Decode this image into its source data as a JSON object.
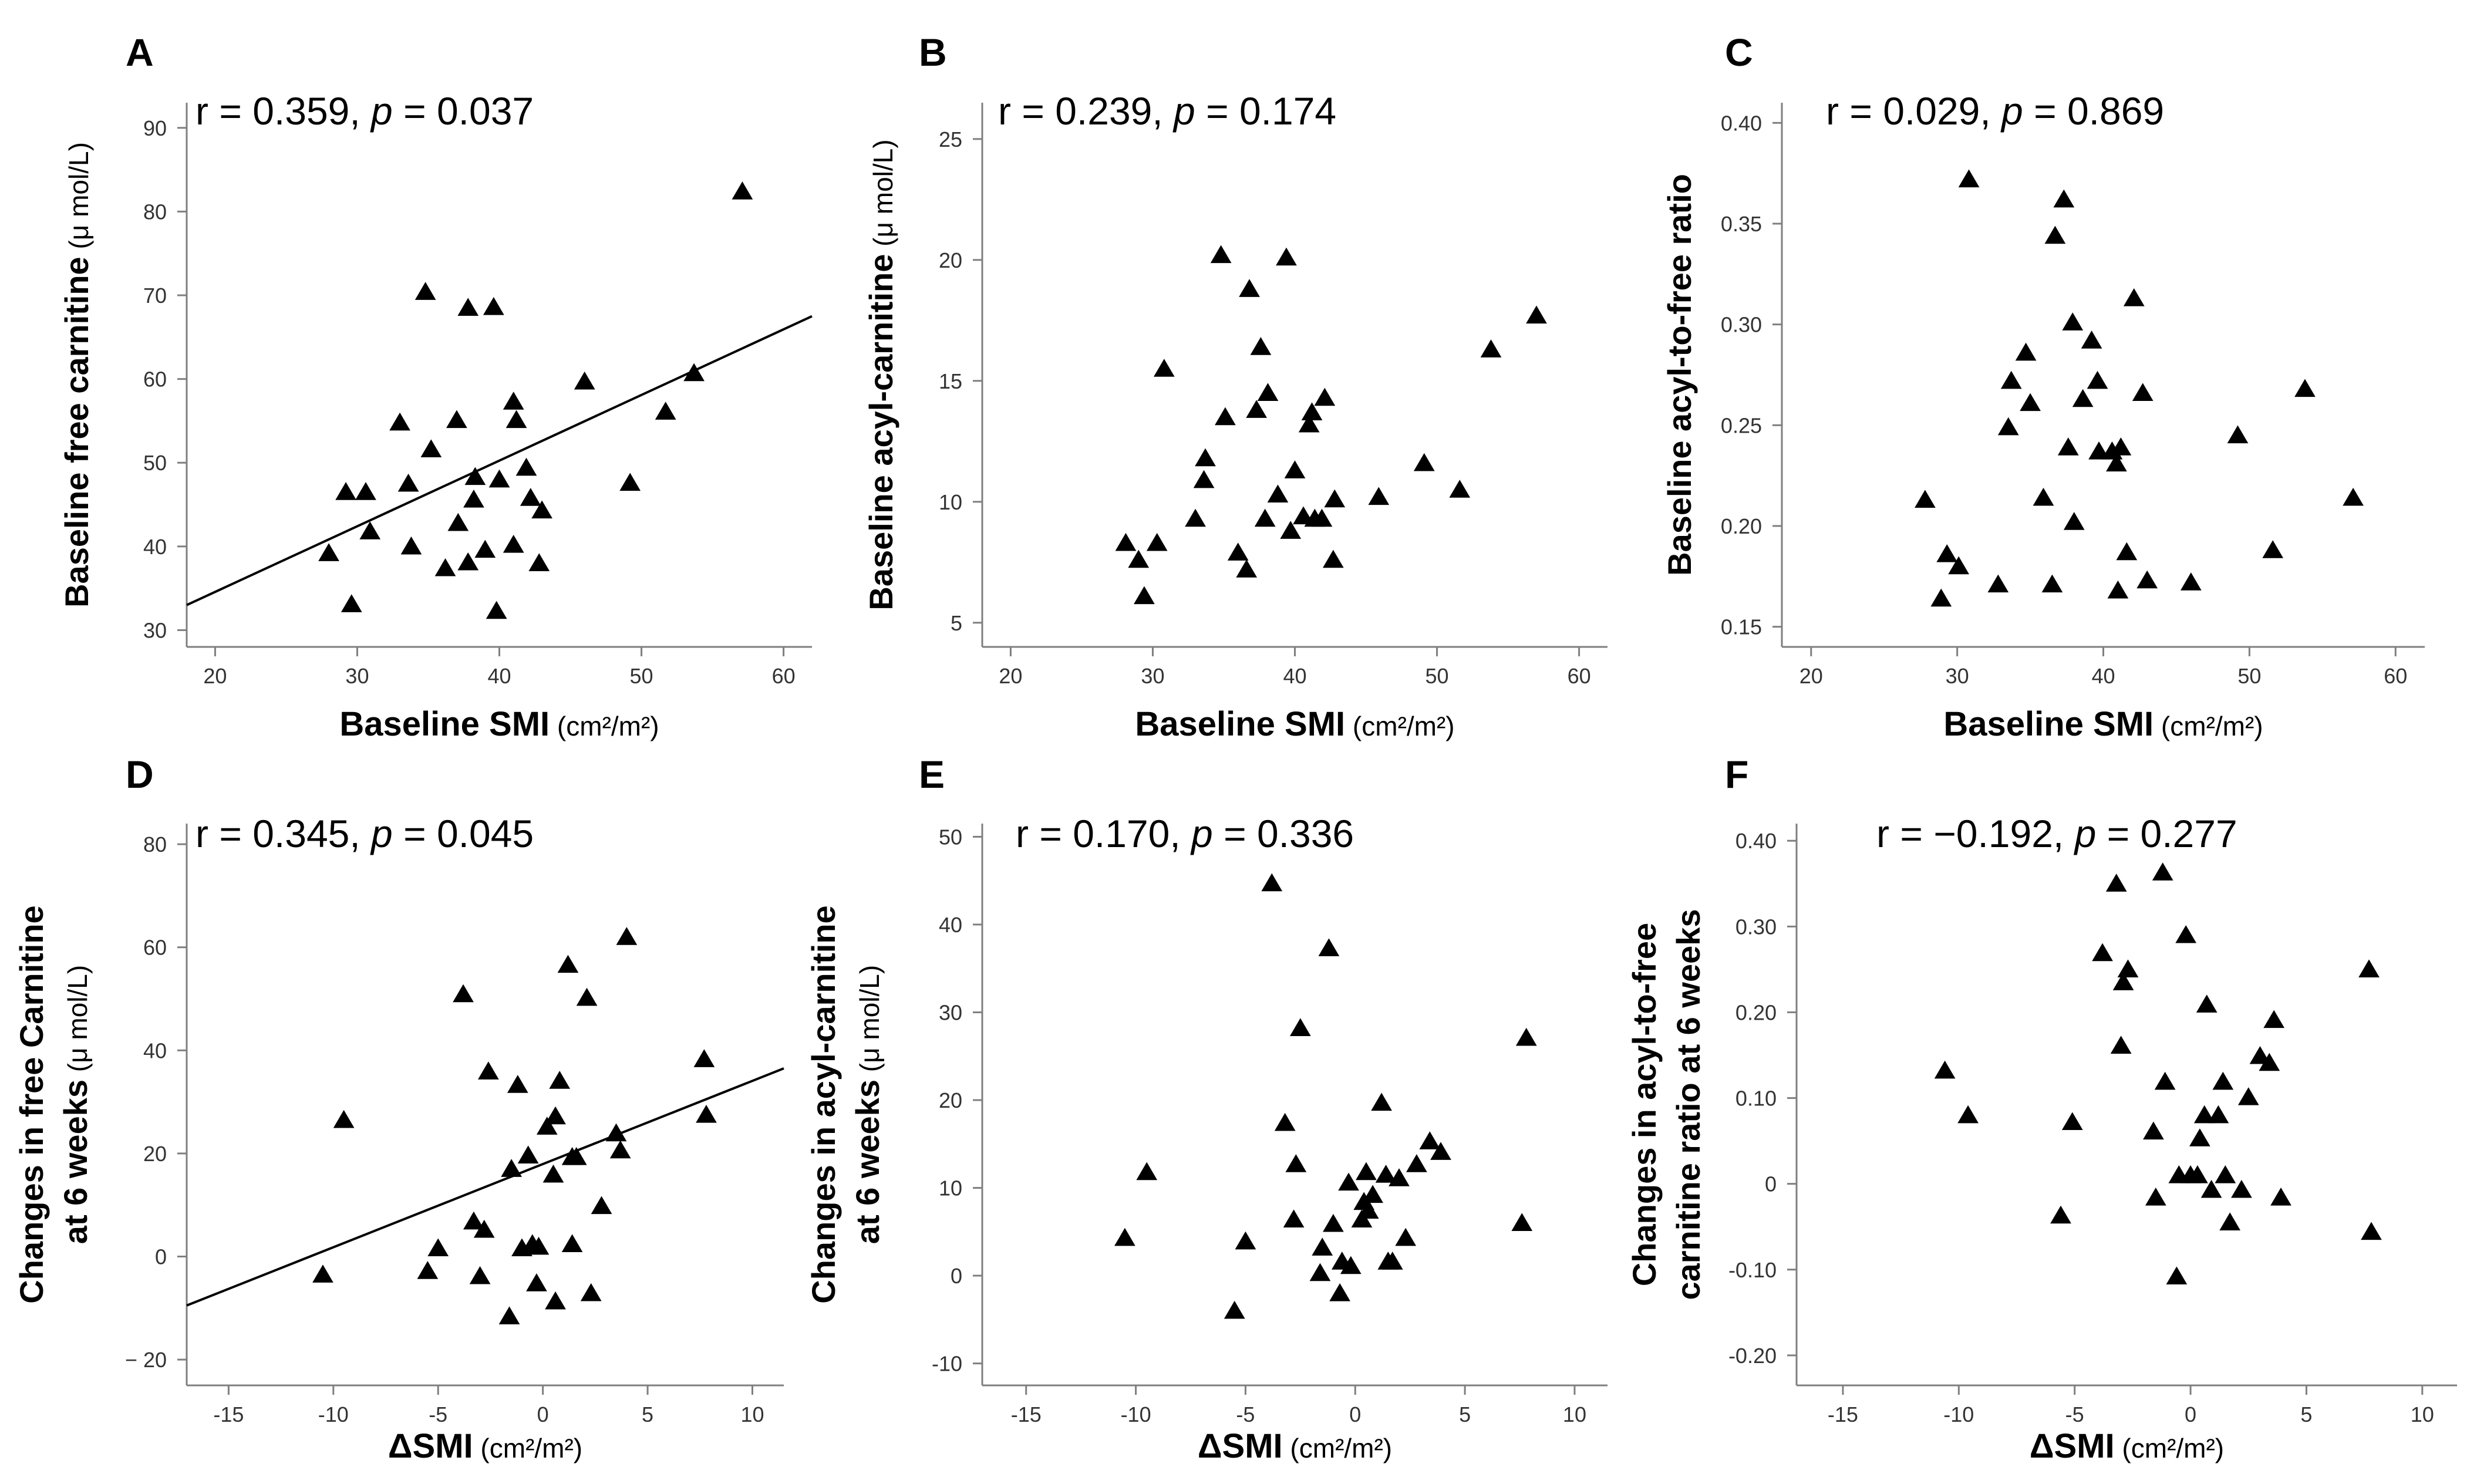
{
  "figure": {
    "background": "#ffffff",
    "marker_color": "#000000",
    "axis_color": "#7f7f7f",
    "fit_line_color": "#000000"
  },
  "chart_data": [
    {
      "type": "scatter",
      "panel": "A",
      "annotation": {
        "r_text": "r = 0.359, ",
        "p_label": "p",
        "p_text": " = 0.037"
      },
      "xlabel": "Baseline SMI",
      "xlabel_unit": "(cm²/m²)",
      "ylabel_lines": [
        {
          "main": "Baseline free carnitine",
          "unit": "(μ mol/L)"
        }
      ],
      "xlim": [
        18,
        62
      ],
      "ylim": [
        28,
        93
      ],
      "xticks": [
        20,
        30,
        40,
        50,
        60
      ],
      "yticks": [
        30,
        40,
        50,
        60,
        70,
        80,
        90
      ],
      "fit_line": {
        "x": [
          18,
          62
        ],
        "y": [
          33,
          67.5
        ]
      },
      "points": [
        {
          "x": 28,
          "y": 39.2
        },
        {
          "x": 29.2,
          "y": 46.5
        },
        {
          "x": 29.6,
          "y": 33.1
        },
        {
          "x": 30.6,
          "y": 46.5
        },
        {
          "x": 30.9,
          "y": 41.8
        },
        {
          "x": 33.0,
          "y": 54.8
        },
        {
          "x": 33.6,
          "y": 47.5
        },
        {
          "x": 33.8,
          "y": 40.0
        },
        {
          "x": 34.8,
          "y": 70.4
        },
        {
          "x": 35.2,
          "y": 51.6
        },
        {
          "x": 36.2,
          "y": 37.4
        },
        {
          "x": 37.0,
          "y": 55.1
        },
        {
          "x": 37.1,
          "y": 42.8
        },
        {
          "x": 37.8,
          "y": 68.5
        },
        {
          "x": 37.8,
          "y": 38.1
        },
        {
          "x": 38.2,
          "y": 45.6
        },
        {
          "x": 38.3,
          "y": 48.3
        },
        {
          "x": 39.0,
          "y": 39.6
        },
        {
          "x": 39.6,
          "y": 68.6
        },
        {
          "x": 39.8,
          "y": 32.3
        },
        {
          "x": 40.0,
          "y": 48.0
        },
        {
          "x": 41.0,
          "y": 57.3
        },
        {
          "x": 41.2,
          "y": 55.1
        },
        {
          "x": 41.0,
          "y": 40.2
        },
        {
          "x": 41.9,
          "y": 49.4
        },
        {
          "x": 42.2,
          "y": 45.8
        },
        {
          "x": 42.8,
          "y": 38.0
        },
        {
          "x": 43.0,
          "y": 44.3
        },
        {
          "x": 46.0,
          "y": 59.7
        },
        {
          "x": 49.2,
          "y": 47.6
        },
        {
          "x": 51.7,
          "y": 56.1
        },
        {
          "x": 53.7,
          "y": 60.7
        },
        {
          "x": 57.1,
          "y": 82.4
        }
      ]
    },
    {
      "type": "scatter",
      "panel": "B",
      "annotation": {
        "r_text": "r = 0.239, ",
        "p_label": "p",
        "p_text": " = 0.174"
      },
      "xlabel": "Baseline SMI",
      "xlabel_unit": "(cm²/m²)",
      "ylabel_lines": [
        {
          "main": "Baseline acyl-carnitine",
          "unit": "(μ mol/L)"
        }
      ],
      "xlim": [
        18,
        62
      ],
      "ylim": [
        4,
        26.5
      ],
      "xticks": [
        20,
        30,
        40,
        50,
        60
      ],
      "yticks": [
        5,
        10,
        15,
        20,
        25
      ],
      "points": [
        {
          "x": 28.1,
          "y": 8.3
        },
        {
          "x": 29.0,
          "y": 7.6
        },
        {
          "x": 29.4,
          "y": 6.1
        },
        {
          "x": 30.3,
          "y": 8.3
        },
        {
          "x": 30.8,
          "y": 15.5
        },
        {
          "x": 33.0,
          "y": 9.3
        },
        {
          "x": 33.6,
          "y": 10.9
        },
        {
          "x": 33.7,
          "y": 11.8
        },
        {
          "x": 34.8,
          "y": 20.2
        },
        {
          "x": 35.1,
          "y": 13.5
        },
        {
          "x": 36.0,
          "y": 7.9
        },
        {
          "x": 36.6,
          "y": 7.2
        },
        {
          "x": 36.8,
          "y": 18.8
        },
        {
          "x": 37.3,
          "y": 13.8
        },
        {
          "x": 37.6,
          "y": 16.4
        },
        {
          "x": 37.9,
          "y": 9.3
        },
        {
          "x": 38.1,
          "y": 14.5
        },
        {
          "x": 38.8,
          "y": 10.3
        },
        {
          "x": 39.4,
          "y": 20.1
        },
        {
          "x": 39.7,
          "y": 8.8
        },
        {
          "x": 40.0,
          "y": 11.3
        },
        {
          "x": 40.6,
          "y": 9.4
        },
        {
          "x": 41.0,
          "y": 13.2
        },
        {
          "x": 41.2,
          "y": 13.7
        },
        {
          "x": 41.4,
          "y": 9.3
        },
        {
          "x": 41.9,
          "y": 9.3
        },
        {
          "x": 42.1,
          "y": 14.3
        },
        {
          "x": 42.7,
          "y": 7.6
        },
        {
          "x": 42.8,
          "y": 10.1
        },
        {
          "x": 45.9,
          "y": 10.2
        },
        {
          "x": 49.1,
          "y": 11.6
        },
        {
          "x": 51.6,
          "y": 10.5
        },
        {
          "x": 53.8,
          "y": 16.3
        },
        {
          "x": 57.0,
          "y": 17.7
        }
      ]
    },
    {
      "type": "scatter",
      "panel": "C",
      "annotation": {
        "r_text": "r = 0.029, ",
        "p_label": "p",
        "p_text": " = 0.869"
      },
      "xlabel": "Baseline SMI",
      "xlabel_unit": "(cm²/m²)",
      "ylabel_lines": [
        {
          "main": "Baseline acyl-to-free ratio",
          "unit": ""
        }
      ],
      "xlim": [
        18,
        62
      ],
      "ylim": [
        0.14,
        0.41
      ],
      "xticks": [
        20,
        30,
        40,
        50,
        60
      ],
      "yticks": [
        "0.15",
        "0.20",
        "0.25",
        "0.30",
        "0.35",
        "0.40"
      ],
      "points": [
        {
          "x": 27.8,
          "y": 0.213
        },
        {
          "x": 28.9,
          "y": 0.164
        },
        {
          "x": 29.3,
          "y": 0.186
        },
        {
          "x": 30.1,
          "y": 0.18
        },
        {
          "x": 30.8,
          "y": 0.372
        },
        {
          "x": 32.8,
          "y": 0.171
        },
        {
          "x": 33.5,
          "y": 0.249
        },
        {
          "x": 33.7,
          "y": 0.272
        },
        {
          "x": 34.7,
          "y": 0.286
        },
        {
          "x": 35.0,
          "y": 0.261
        },
        {
          "x": 35.9,
          "y": 0.214
        },
        {
          "x": 36.5,
          "y": 0.171
        },
        {
          "x": 36.7,
          "y": 0.344
        },
        {
          "x": 37.3,
          "y": 0.362
        },
        {
          "x": 37.6,
          "y": 0.239
        },
        {
          "x": 37.9,
          "y": 0.301
        },
        {
          "x": 38.0,
          "y": 0.202
        },
        {
          "x": 38.6,
          "y": 0.263
        },
        {
          "x": 39.2,
          "y": 0.292
        },
        {
          "x": 39.6,
          "y": 0.272
        },
        {
          "x": 39.7,
          "y": 0.237
        },
        {
          "x": 40.6,
          "y": 0.237
        },
        {
          "x": 40.9,
          "y": 0.231
        },
        {
          "x": 41.0,
          "y": 0.168
        },
        {
          "x": 41.2,
          "y": 0.239
        },
        {
          "x": 41.6,
          "y": 0.187
        },
        {
          "x": 42.1,
          "y": 0.313
        },
        {
          "x": 42.7,
          "y": 0.266
        },
        {
          "x": 43.0,
          "y": 0.173
        },
        {
          "x": 46.0,
          "y": 0.172
        },
        {
          "x": 49.2,
          "y": 0.245
        },
        {
          "x": 51.6,
          "y": 0.188
        },
        {
          "x": 53.8,
          "y": 0.268
        },
        {
          "x": 57.1,
          "y": 0.214
        }
      ]
    },
    {
      "type": "scatter",
      "panel": "D",
      "annotation": {
        "r_text": "r = 0.345, ",
        "p_label": "p",
        "p_text": " = 0.045"
      },
      "xlabel": "ΔSMI",
      "xlabel_unit": "(cm²/m²)",
      "ylabel_lines": [
        {
          "main": "Changes in free Carnitine",
          "unit": ""
        },
        {
          "main": "at 6 weeks",
          "unit": "(μ mol/L)"
        }
      ],
      "xlim": [
        -17,
        11.5
      ],
      "ylim": [
        -25,
        84
      ],
      "xticks": [
        -15,
        -10,
        -5,
        0,
        5,
        10
      ],
      "yticks": [
        "− 20",
        "0",
        "20",
        "40",
        "60",
        "80"
      ],
      "ytick_values": [
        -20,
        0,
        20,
        40,
        60,
        80
      ],
      "fit_line": {
        "x": [
          -17,
          11.5
        ],
        "y": [
          -9.5,
          36.5
        ]
      },
      "points": [
        {
          "x": -10.5,
          "y": -3.5
        },
        {
          "x": -9.5,
          "y": 26.5
        },
        {
          "x": -5.5,
          "y": -2.8
        },
        {
          "x": -5.0,
          "y": 1.6
        },
        {
          "x": -3.8,
          "y": 50.9
        },
        {
          "x": -3.3,
          "y": 6.8
        },
        {
          "x": -3.0,
          "y": -3.8
        },
        {
          "x": -2.8,
          "y": 5.2
        },
        {
          "x": -2.6,
          "y": 35.9
        },
        {
          "x": -1.6,
          "y": -11.6
        },
        {
          "x": -1.5,
          "y": 17.0
        },
        {
          "x": -1.2,
          "y": 33.3
        },
        {
          "x": -1.0,
          "y": 1.6
        },
        {
          "x": -0.7,
          "y": 19.6
        },
        {
          "x": -0.5,
          "y": 2.4
        },
        {
          "x": -0.3,
          "y": -5.2
        },
        {
          "x": -0.2,
          "y": 1.9
        },
        {
          "x": 0.2,
          "y": 25.2
        },
        {
          "x": 0.5,
          "y": 15.9
        },
        {
          "x": 0.6,
          "y": 27.2
        },
        {
          "x": 0.8,
          "y": 34.1
        },
        {
          "x": 0.6,
          "y": -8.7
        },
        {
          "x": 1.2,
          "y": 56.6
        },
        {
          "x": 1.4,
          "y": 2.4
        },
        {
          "x": 1.4,
          "y": 19.3
        },
        {
          "x": 1.6,
          "y": 19.3
        },
        {
          "x": 2.1,
          "y": 50.2
        },
        {
          "x": 2.3,
          "y": -7.1
        },
        {
          "x": 2.8,
          "y": 9.8
        },
        {
          "x": 3.5,
          "y": 23.9
        },
        {
          "x": 3.7,
          "y": 20.6
        },
        {
          "x": 4.0,
          "y": 62.0
        },
        {
          "x": 7.7,
          "y": 38.3
        },
        {
          "x": 7.8,
          "y": 27.5
        }
      ]
    },
    {
      "type": "scatter",
      "panel": "E",
      "annotation": {
        "r_text": "r = 0.170, ",
        "p_label": "p",
        "p_text": " = 0.336"
      },
      "xlabel": "ΔSMI",
      "xlabel_unit": "(cm²/m²)",
      "ylabel_lines": [
        {
          "main": "Changes in acyl-carnitine",
          "unit": ""
        },
        {
          "main": "at 6 weeks",
          "unit": "(μ mol/L)"
        }
      ],
      "xlim": [
        -17,
        11.5
      ],
      "ylim": [
        -12.5,
        51.5
      ],
      "xticks": [
        -15,
        -10,
        -5,
        0,
        5,
        10
      ],
      "yticks": [
        -10,
        0,
        10,
        20,
        30,
        40,
        50
      ],
      "points": [
        {
          "x": -10.5,
          "y": 4.3
        },
        {
          "x": -9.5,
          "y": 11.8
        },
        {
          "x": -5.5,
          "y": -4.0
        },
        {
          "x": -5.0,
          "y": 3.9
        },
        {
          "x": -3.8,
          "y": 44.7
        },
        {
          "x": -3.2,
          "y": 17.4
        },
        {
          "x": -2.8,
          "y": 6.4
        },
        {
          "x": -2.7,
          "y": 12.7
        },
        {
          "x": -2.5,
          "y": 28.2
        },
        {
          "x": -1.6,
          "y": 0.3
        },
        {
          "x": -1.5,
          "y": 3.2
        },
        {
          "x": -1.2,
          "y": 37.3
        },
        {
          "x": -1.0,
          "y": 5.9
        },
        {
          "x": -0.7,
          "y": -2.0
        },
        {
          "x": -0.6,
          "y": 1.6
        },
        {
          "x": -0.3,
          "y": 10.6
        },
        {
          "x": -0.2,
          "y": 1.1
        },
        {
          "x": 0.3,
          "y": 6.4
        },
        {
          "x": 0.4,
          "y": 8.4
        },
        {
          "x": 0.5,
          "y": 11.8
        },
        {
          "x": 0.6,
          "y": 7.4
        },
        {
          "x": 0.8,
          "y": 9.2
        },
        {
          "x": 1.2,
          "y": 19.7
        },
        {
          "x": 1.4,
          "y": 11.5
        },
        {
          "x": 1.5,
          "y": 1.6
        },
        {
          "x": 1.7,
          "y": 1.6
        },
        {
          "x": 2.0,
          "y": 11.1
        },
        {
          "x": 2.3,
          "y": 4.3
        },
        {
          "x": 2.8,
          "y": 12.7
        },
        {
          "x": 3.4,
          "y": 15.3
        },
        {
          "x": 3.9,
          "y": 14.1
        },
        {
          "x": 7.6,
          "y": 6.0
        },
        {
          "x": 7.8,
          "y": 27.1
        }
      ]
    },
    {
      "type": "scatter",
      "panel": "F",
      "annotation": {
        "r_text": "r =  −0.192, ",
        "p_label": "p",
        "p_text": " = 0.277"
      },
      "xlabel": "ΔSMI",
      "xlabel_unit": "(cm²/m²)",
      "ylabel_lines": [
        {
          "main": "Changes in acyl-to-free",
          "unit": ""
        },
        {
          "main": "carnitine ratio at 6 weeks",
          "unit": ""
        }
      ],
      "xlim": [
        -17,
        11.5
      ],
      "ylim": [
        -0.235,
        0.42
      ],
      "xticks": [
        -15,
        -10,
        -5,
        0,
        5,
        10
      ],
      "yticks": [
        "-0.20",
        "-0.10",
        "0",
        "0.10",
        "0.20",
        "0.30",
        "0.40"
      ],
      "ytick_values": [
        -0.2,
        -0.1,
        0,
        0.1,
        0.2,
        0.3,
        0.4
      ],
      "points": [
        {
          "x": -10.6,
          "y": 0.132
        },
        {
          "x": -9.6,
          "y": 0.08
        },
        {
          "x": -5.6,
          "y": -0.037
        },
        {
          "x": -5.1,
          "y": 0.072
        },
        {
          "x": -3.8,
          "y": 0.269
        },
        {
          "x": -3.2,
          "y": 0.35
        },
        {
          "x": -3.0,
          "y": 0.161
        },
        {
          "x": -2.9,
          "y": 0.235
        },
        {
          "x": -2.7,
          "y": 0.25
        },
        {
          "x": -1.6,
          "y": 0.061
        },
        {
          "x": -1.5,
          "y": -0.016
        },
        {
          "x": -1.2,
          "y": 0.363
        },
        {
          "x": -1.1,
          "y": 0.119
        },
        {
          "x": -0.6,
          "y": -0.108
        },
        {
          "x": -0.5,
          "y": 0.01
        },
        {
          "x": -0.2,
          "y": 0.29
        },
        {
          "x": 0.0,
          "y": 0.01
        },
        {
          "x": 0.3,
          "y": 0.01
        },
        {
          "x": 0.4,
          "y": 0.053
        },
        {
          "x": 0.6,
          "y": 0.08
        },
        {
          "x": 0.7,
          "y": 0.209
        },
        {
          "x": 0.9,
          "y": -0.007
        },
        {
          "x": 1.2,
          "y": 0.08
        },
        {
          "x": 1.4,
          "y": 0.119
        },
        {
          "x": 1.5,
          "y": 0.01
        },
        {
          "x": 1.7,
          "y": -0.045
        },
        {
          "x": 2.2,
          "y": -0.007
        },
        {
          "x": 2.5,
          "y": 0.101
        },
        {
          "x": 3.0,
          "y": 0.149
        },
        {
          "x": 3.4,
          "y": 0.141
        },
        {
          "x": 3.6,
          "y": 0.191
        },
        {
          "x": 3.9,
          "y": -0.016
        },
        {
          "x": 7.7,
          "y": 0.25
        },
        {
          "x": 7.8,
          "y": -0.056
        }
      ]
    }
  ]
}
